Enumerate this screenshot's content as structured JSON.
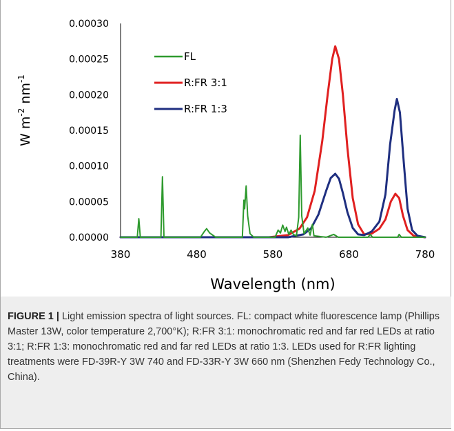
{
  "caption": {
    "label": "FIGURE 1 |",
    "text": " Light emission spectra of light sources. FL: compact white fluorescence lamp (Phillips Master 13W, color temperature 2,700°K); R:FR 3:1: monochromatic red and far red LEDs at ratio 3:1; R:FR 1:3: monochromatic red and far red LEDs at ratio 1:3. LEDs used for R:FR lighting treatments were FD-39R-Y 3W 740 and FD-33R-Y 3W 660 nm (Shenzhen Fedy Technology Co., China)."
  },
  "chart_data": {
    "type": "line",
    "title": "",
    "xlabel": "Wavelength (nm)",
    "ylabel": "W m-2 nm-1",
    "xlim": [
      380,
      780
    ],
    "ylim": [
      0,
      0.0003
    ],
    "x_ticks": [
      "380",
      "480",
      "580",
      "680",
      "780"
    ],
    "y_ticks": [
      "0.00000",
      "0.00005",
      "0.00010",
      "0.00015",
      "0.00020",
      "0.00025",
      "0.00030"
    ],
    "grid": false,
    "legend_position": "top-left",
    "series": [
      {
        "name": "FL",
        "color": "#2e9a2e",
        "points": [
          [
            380,
            0
          ],
          [
            402,
            0
          ],
          [
            404,
            2.6e-05
          ],
          [
            406,
            0
          ],
          [
            433,
            0
          ],
          [
            435,
            8.5e-05
          ],
          [
            437,
            0
          ],
          [
            485,
            0
          ],
          [
            490,
            8e-06
          ],
          [
            493,
            1.2e-05
          ],
          [
            497,
            6e-06
          ],
          [
            505,
            0
          ],
          [
            540,
            0
          ],
          [
            542,
            5.2e-05
          ],
          [
            543,
            4e-05
          ],
          [
            545,
            7.2e-05
          ],
          [
            547,
            3e-05
          ],
          [
            550,
            5e-06
          ],
          [
            555,
            0
          ],
          [
            583,
            0
          ],
          [
            587,
            1e-05
          ],
          [
            590,
            6e-06
          ],
          [
            593,
            1.7e-05
          ],
          [
            596,
            8e-06
          ],
          [
            598,
            1.4e-05
          ],
          [
            601,
            4e-06
          ],
          [
            604,
            1e-05
          ],
          [
            607,
            4e-06
          ],
          [
            611,
            2e-06
          ],
          [
            614,
            2.8e-05
          ],
          [
            616,
            0.000143
          ],
          [
            618,
            3e-05
          ],
          [
            621,
            5e-06
          ],
          [
            626,
            1.3e-05
          ],
          [
            629,
            3e-06
          ],
          [
            632,
            1.8e-05
          ],
          [
            634,
            2e-06
          ],
          [
            650,
            0
          ],
          [
            660,
            4e-06
          ],
          [
            666,
            0
          ],
          [
            705,
            0
          ],
          [
            708,
            4e-06
          ],
          [
            711,
            0
          ],
          [
            744,
            0
          ],
          [
            746,
            4e-06
          ],
          [
            749,
            0
          ],
          [
            780,
            0
          ]
        ]
      },
      {
        "name": "R:FR 3:1",
        "color": "#e02020",
        "points": [
          [
            380,
            0
          ],
          [
            575,
            0
          ],
          [
            600,
            3e-06
          ],
          [
            615,
            1.2e-05
          ],
          [
            625,
            2.8e-05
          ],
          [
            635,
            6.5e-05
          ],
          [
            645,
            0.000135
          ],
          [
            652,
            0.0002
          ],
          [
            658,
            0.00025
          ],
          [
            662,
            0.000268
          ],
          [
            667,
            0.00025
          ],
          [
            672,
            0.0002
          ],
          [
            678,
            0.000125
          ],
          [
            685,
            5.5e-05
          ],
          [
            692,
            1.8e-05
          ],
          [
            700,
            4e-06
          ],
          [
            710,
            5e-06
          ],
          [
            720,
            1.2e-05
          ],
          [
            728,
            2.5e-05
          ],
          [
            735,
            5e-05
          ],
          [
            741,
            6.1e-05
          ],
          [
            746,
            5.5e-05
          ],
          [
            751,
            3e-05
          ],
          [
            757,
            1e-05
          ],
          [
            765,
            2e-06
          ],
          [
            780,
            0
          ]
        ]
      },
      {
        "name": "R:FR 1:3",
        "color": "#1f2f80",
        "points": [
          [
            380,
            0
          ],
          [
            600,
            0
          ],
          [
            620,
            4e-06
          ],
          [
            630,
            1.2e-05
          ],
          [
            640,
            3.2e-05
          ],
          [
            650,
            6.5e-05
          ],
          [
            656,
            8.3e-05
          ],
          [
            662,
            8.9e-05
          ],
          [
            667,
            8.2e-05
          ],
          [
            672,
            6.2e-05
          ],
          [
            678,
            3.5e-05
          ],
          [
            685,
            1.3e-05
          ],
          [
            692,
            4e-06
          ],
          [
            700,
            3e-06
          ],
          [
            710,
            8e-06
          ],
          [
            720,
            2.2e-05
          ],
          [
            728,
            6e-05
          ],
          [
            734,
            0.00013
          ],
          [
            740,
            0.000178
          ],
          [
            743,
            0.000194
          ],
          [
            747,
            0.000175
          ],
          [
            752,
            0.000105
          ],
          [
            757,
            4e-05
          ],
          [
            763,
            1e-05
          ],
          [
            770,
            2e-06
          ],
          [
            780,
            0
          ]
        ]
      }
    ]
  }
}
